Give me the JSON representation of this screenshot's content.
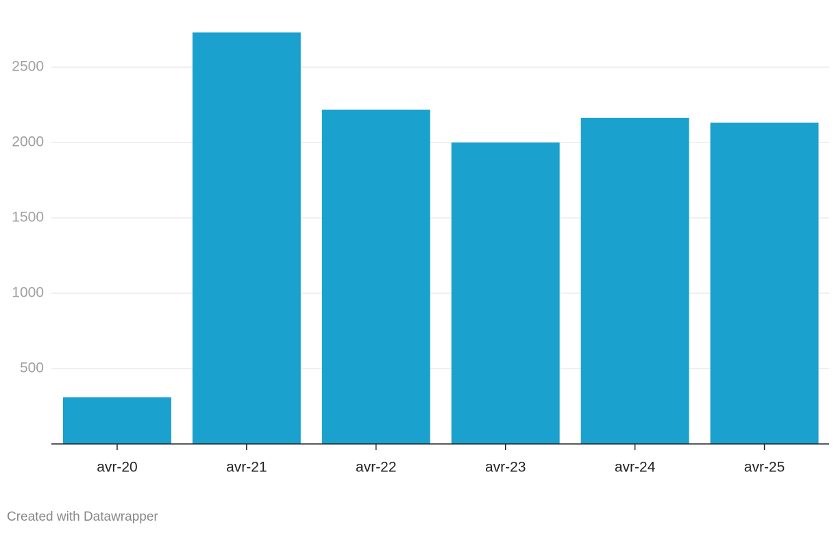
{
  "chart_data": {
    "type": "bar",
    "categories": [
      "avr-20",
      "avr-21",
      "avr-22",
      "avr-23",
      "avr-24",
      "avr-25"
    ],
    "values": [
      309,
      2730,
      2218,
      2000,
      2164,
      2132
    ],
    "color": "#1aa1cd",
    "ylim": [
      0,
      2750
    ],
    "yticks": [
      500,
      1000,
      1500,
      2000,
      2500
    ],
    "grid": true,
    "credit": "Created with Datawrapper"
  }
}
